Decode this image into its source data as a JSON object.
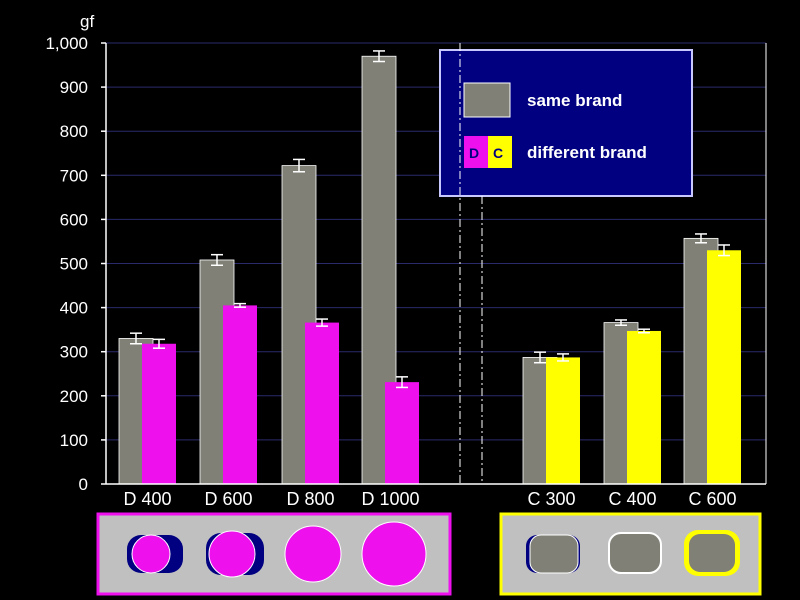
{
  "chart_data": {
    "type": "bar",
    "ylabel": "gf",
    "ylim": [
      0,
      1000
    ],
    "yticks": [
      "0",
      "100",
      "200",
      "300",
      "400",
      "500",
      "600",
      "700",
      "800",
      "900",
      "1,000"
    ],
    "grid": true,
    "legend_position": "top-right",
    "groups": [
      {
        "category": "D 400",
        "same": 330,
        "same_err": 12,
        "different": 318,
        "different_err": 10,
        "color": "#ee11ee"
      },
      {
        "category": "D 600",
        "same": 508,
        "same_err": 12,
        "different": 405,
        "different_err": 4,
        "color": "#ee11ee"
      },
      {
        "category": "D 800",
        "same": 722,
        "same_err": 14,
        "different": 366,
        "different_err": 8,
        "color": "#ee11ee"
      },
      {
        "category": "D 1000",
        "same": 970,
        "same_err": 12,
        "different": 231,
        "different_err": 12,
        "color": "#ee11ee"
      },
      {
        "category": "C 300",
        "same": 287,
        "same_err": 12,
        "different": 287,
        "different_err": 8,
        "color": "#ffff00"
      },
      {
        "category": "C 400",
        "same": 366,
        "same_err": 6,
        "different": 347,
        "different_err": 4,
        "color": "#ffff00"
      },
      {
        "category": "C 600",
        "same": 557,
        "same_err": 10,
        "different": 530,
        "different_err": 12,
        "color": "#ffff00"
      }
    ],
    "legend": {
      "same_label": "same brand",
      "different_label": "different brand",
      "d_letter": "D",
      "c_letter": "C"
    }
  },
  "colors": {
    "same": "#808077",
    "d_brand": "#ee11ee",
    "c_brand": "#ffff00",
    "legend_bg": "#000080",
    "panel_bg": "#c0c0c0",
    "error_bar": "#ffffff",
    "axis": "#ffffff"
  },
  "bottom_panels": {
    "d_shapes": [
      "D 400",
      "D 600",
      "D 800",
      "D 1000"
    ],
    "c_shapes": [
      "C 300",
      "C 400",
      "C 600"
    ]
  }
}
